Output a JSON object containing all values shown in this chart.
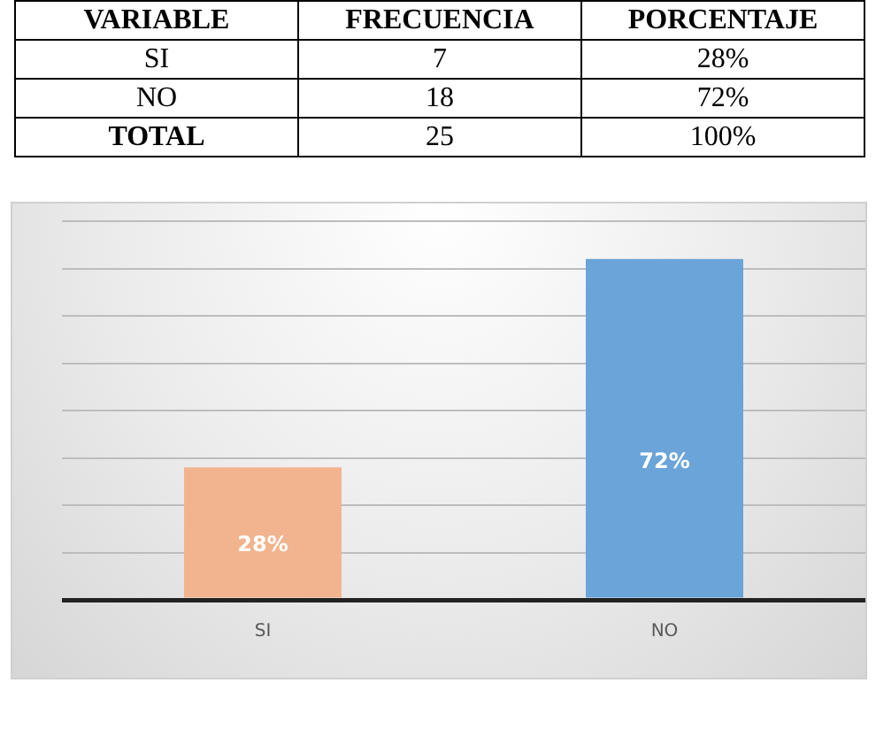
{
  "chart_data": {
    "type": "bar",
    "categories": [
      "SI",
      "NO"
    ],
    "values": [
      28,
      72
    ],
    "colors": [
      "#f2b48e",
      "#6aa4d8"
    ],
    "ylim": [
      0,
      80
    ],
    "yticks": [
      {
        "value": 0,
        "label": null
      },
      {
        "value": 10,
        "label": null
      },
      {
        "value": 20,
        "label": null
      },
      {
        "value": 30,
        "label": null
      },
      {
        "value": 40,
        "label": null
      },
      {
        "value": 50,
        "label": null
      },
      {
        "value": 60,
        "label": null
      },
      {
        "value": 70,
        "label": null
      },
      {
        "value": 80,
        "label": null
      }
    ],
    "value_labels": [
      "28%",
      "72%"
    ],
    "grid": "y",
    "tick_labels": "x",
    "annotations": [
      "VARIABLE",
      "FRECUENCIA",
      "PORCENTAJE",
      "SI",
      "7",
      "28%",
      "NO",
      "18",
      "72%",
      "TOTAL",
      "25",
      "100%"
    ]
  }
}
